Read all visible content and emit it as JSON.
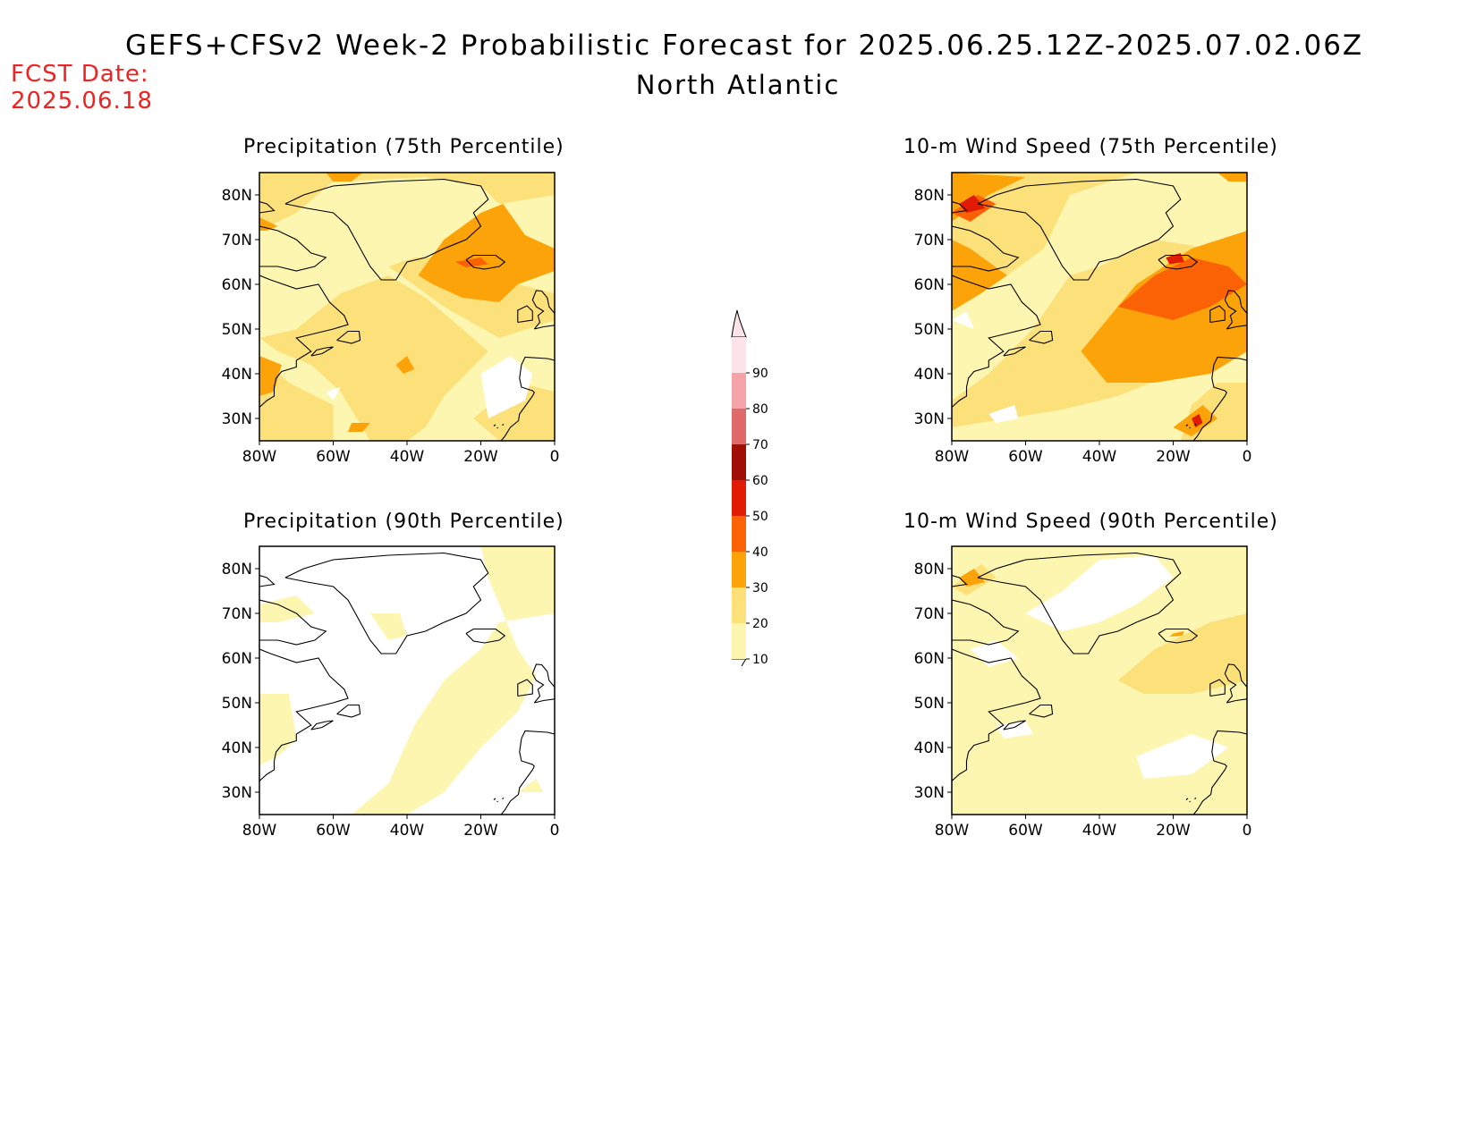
{
  "header": {
    "title": "GEFS+CFSv2 Week-2 Probabilistic Forecast for 2025.06.25.12Z-2025.07.02.06Z",
    "subtitle": "North Atlantic",
    "fcst_label": "FCST Date:",
    "fcst_date": "2025.06.18"
  },
  "panels": [
    {
      "id": "precip75",
      "title": "Precipitation (75th Percentile)"
    },
    {
      "id": "wind75",
      "title": "10-m Wind Speed (75th Percentile)"
    },
    {
      "id": "precip90",
      "title": "Precipitation (90th Percentile)"
    },
    {
      "id": "wind90",
      "title": "10-m Wind Speed (90th Percentile)"
    }
  ],
  "axes": {
    "lat_labels": [
      "80N",
      "70N",
      "60N",
      "50N",
      "40N",
      "30N"
    ],
    "lon_labels": [
      "80W",
      "60W",
      "40W",
      "20W",
      "0"
    ]
  },
  "colorbar": {
    "levels": [
      "10",
      "20",
      "30",
      "40",
      "50",
      "60",
      "70",
      "80",
      "90"
    ],
    "colors": [
      "#fdf6b0",
      "#fce07a",
      "#fca30a",
      "#fb6205",
      "#e01c04",
      "#a00e05",
      "#e06a6a",
      "#f4a3a8",
      "#fde4e8"
    ]
  }
}
